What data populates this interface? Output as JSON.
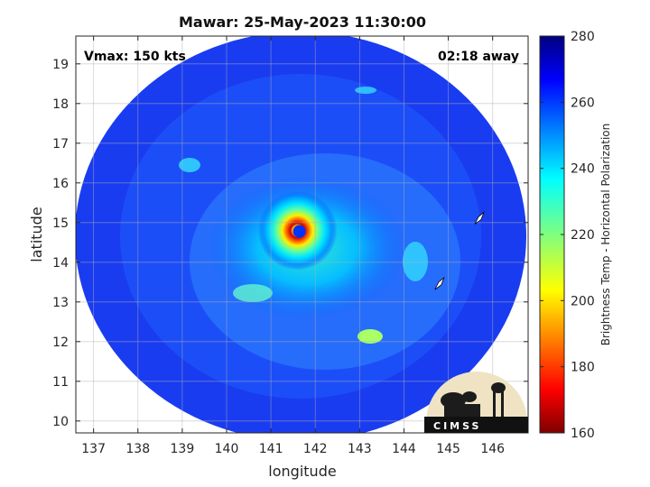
{
  "chart_data": {
    "type": "heatmap",
    "title": "Mawar: 25-May-2023 11:30:00",
    "xlabel": "longitude",
    "ylabel": "latitude",
    "xlim": [
      136.6,
      146.8
    ],
    "ylim": [
      9.7,
      19.7
    ],
    "xticks": [
      137,
      138,
      139,
      140,
      141,
      142,
      143,
      144,
      145,
      146
    ],
    "yticks": [
      10,
      11,
      12,
      13,
      14,
      15,
      16,
      17,
      18,
      19
    ],
    "grid": true,
    "annotations": {
      "left": "Vmax: 150 kts",
      "right": "02:18 away"
    },
    "storm_center": {
      "lon": 141.6,
      "lat": 14.8
    },
    "swath_center": {
      "lon": 141.6,
      "lat": 14.8
    },
    "islands": [
      {
        "lon": 145.7,
        "lat": 15.1
      },
      {
        "lon": 144.8,
        "lat": 13.45
      }
    ],
    "colorbar": {
      "label": "Brightness Temp - Horizontal Polarization",
      "range": [
        160,
        280
      ],
      "ticks": [
        160,
        180,
        200,
        220,
        240,
        260,
        280
      ],
      "colormap": "jet"
    }
  },
  "logo": {
    "text": "CIMSS"
  }
}
